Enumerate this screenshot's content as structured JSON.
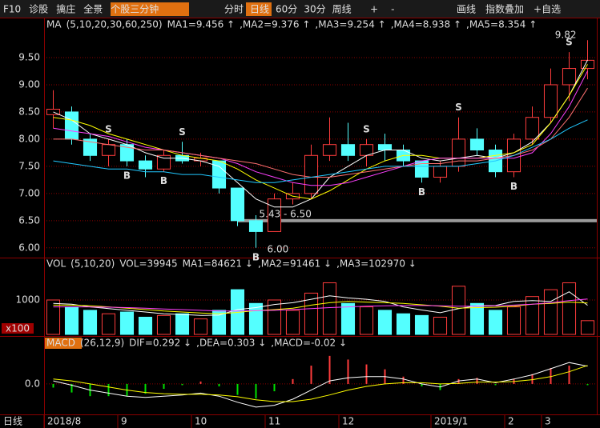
{
  "toolbar": {
    "left": [
      "F10",
      "诊股",
      "擒庄",
      "全景",
      "个股三分钟"
    ],
    "periods": [
      "分时",
      "日线",
      "60分",
      "30分",
      "周线"
    ],
    "zoom": [
      "+",
      "-"
    ],
    "right": [
      "画线",
      "指数叠加",
      "+自选"
    ]
  },
  "footer": {
    "period": "日线"
  },
  "chart_data": [
    {
      "type": "candlestick",
      "indicator": "MA",
      "params": "(5,10,20,30,60,250)",
      "categories": [
        "2018/8",
        null,
        null,
        null,
        "9",
        null,
        null,
        null,
        "10",
        null,
        null,
        null,
        "11",
        null,
        null,
        null,
        "12",
        null,
        null,
        null,
        null,
        "2019/1",
        null,
        null,
        null,
        "2",
        null,
        "3",
        null,
        null
      ],
      "open": [
        8.45,
        8.5,
        8.0,
        7.7,
        7.9,
        7.6,
        7.45,
        7.7,
        7.6,
        7.6,
        7.1,
        6.5,
        6.3,
        6.9,
        7.0,
        7.7,
        7.9,
        7.7,
        7.9,
        7.8,
        7.6,
        7.3,
        7.5,
        8.0,
        7.8,
        7.4,
        8.0,
        8.4,
        9.0,
        9.3
      ],
      "high": [
        8.9,
        8.6,
        8.1,
        8.0,
        8.0,
        7.7,
        7.8,
        7.95,
        7.75,
        7.6,
        7.1,
        6.6,
        7.0,
        7.2,
        7.9,
        8.4,
        8.3,
        8.0,
        8.1,
        7.9,
        7.6,
        7.6,
        8.4,
        8.2,
        7.9,
        8.1,
        8.6,
        9.3,
        9.6,
        9.82
      ],
      "low": [
        8.2,
        7.9,
        7.6,
        7.5,
        7.5,
        7.3,
        7.4,
        7.55,
        7.5,
        7.0,
        6.4,
        6.0,
        6.3,
        6.8,
        6.9,
        7.6,
        7.6,
        7.5,
        7.6,
        7.5,
        7.2,
        7.2,
        7.4,
        7.7,
        7.3,
        7.3,
        7.9,
        8.3,
        8.7,
        9.1
      ],
      "close": [
        8.55,
        8.0,
        7.7,
        7.9,
        7.6,
        7.45,
        7.7,
        7.6,
        7.65,
        7.1,
        6.5,
        6.3,
        6.9,
        7.0,
        7.7,
        7.9,
        7.7,
        7.9,
        7.8,
        7.6,
        7.3,
        7.5,
        8.0,
        7.8,
        7.4,
        8.0,
        8.4,
        9.0,
        9.3,
        9.45
      ],
      "up_color": "#ff3c3c",
      "down_color": "#54ffff",
      "signals": [
        null,
        null,
        null,
        "S",
        "B",
        null,
        "B",
        "S",
        null,
        null,
        null,
        "B",
        null,
        null,
        null,
        null,
        null,
        "S",
        null,
        null,
        "B",
        null,
        "S",
        null,
        null,
        "B",
        null,
        null,
        "S",
        null
      ],
      "signal_colors": {
        "B": "#ff9020",
        "S": "#40ff40"
      },
      "series": [
        {
          "name": "MA1=9.456 ↑",
          "color": "#ffffff",
          "values": [
            8.5,
            8.35,
            8.1,
            8.0,
            7.9,
            7.75,
            7.65,
            7.65,
            7.6,
            7.5,
            7.2,
            6.9,
            6.75,
            6.75,
            6.9,
            7.3,
            7.5,
            7.7,
            7.8,
            7.8,
            7.65,
            7.6,
            7.65,
            7.7,
            7.65,
            7.75,
            7.95,
            8.3,
            8.8,
            9.456
          ]
        },
        {
          "name": ",MA2=9.376 ↑",
          "color": "#ffff00",
          "values": [
            8.4,
            8.35,
            8.25,
            8.1,
            8.0,
            7.9,
            7.8,
            7.7,
            7.65,
            7.6,
            7.45,
            7.25,
            7.1,
            6.95,
            6.9,
            7.05,
            7.25,
            7.45,
            7.6,
            7.7,
            7.7,
            7.65,
            7.65,
            7.65,
            7.7,
            7.75,
            7.9,
            8.3,
            8.8,
            9.376
          ]
        },
        {
          "name": ",MA3=9.254 ↑",
          "color": "#ff40ff",
          "values": [
            8.2,
            8.15,
            8.1,
            8.05,
            7.95,
            7.85,
            7.8,
            7.75,
            7.7,
            7.65,
            7.55,
            7.4,
            7.3,
            7.2,
            7.15,
            7.15,
            7.2,
            7.3,
            7.4,
            7.5,
            7.6,
            7.65,
            7.65,
            7.65,
            7.65,
            7.65,
            7.75,
            8.1,
            8.6,
            9.254
          ]
        },
        {
          "name": ",MA4=8.938 ↑",
          "color": "#ff7070",
          "values": [
            8.0,
            8.0,
            7.95,
            7.9,
            7.85,
            7.8,
            7.8,
            7.75,
            7.7,
            7.65,
            7.6,
            7.55,
            7.45,
            7.35,
            7.3,
            7.3,
            7.35,
            7.4,
            7.45,
            7.5,
            7.55,
            7.55,
            7.6,
            7.6,
            7.65,
            7.7,
            7.8,
            8.0,
            8.4,
            8.938
          ]
        },
        {
          "name": ",MA5=8.354 ↑",
          "color": "#20c8ff",
          "values": [
            7.6,
            7.55,
            7.5,
            7.45,
            7.45,
            7.4,
            7.4,
            7.35,
            7.35,
            7.3,
            7.25,
            7.2,
            7.2,
            7.25,
            7.3,
            7.35,
            7.4,
            7.45,
            7.5,
            7.5,
            7.5,
            7.5,
            7.5,
            7.55,
            7.6,
            7.7,
            7.85,
            8.0,
            8.2,
            8.354
          ]
        }
      ],
      "high_label": "9.82",
      "low_label": "6.00",
      "range_label": "5.43 - 6.50",
      "level_line": 6.5,
      "ylim": [
        5.85,
        10.0
      ],
      "yticks": [
        {
          "value": 6,
          "label": "6.00"
        },
        {
          "value": 6.5,
          "label": "6.50"
        },
        {
          "value": 7,
          "label": "7.00"
        },
        {
          "value": 7.5,
          "label": "7.50"
        },
        {
          "value": 8,
          "label": "8.00"
        },
        {
          "value": 8.5,
          "label": "8.50"
        },
        {
          "value": 9,
          "label": "9.00"
        },
        {
          "value": 9.5,
          "label": "9.50"
        }
      ],
      "tick_color": "#ff4040"
    },
    {
      "type": "bar",
      "indicator": "VOL",
      "params": "(5,10,20)",
      "value_label": "VOL=39945",
      "unit": "x100",
      "values": [
        1000,
        800,
        700,
        600,
        650,
        500,
        550,
        600,
        450,
        700,
        1300,
        900,
        1000,
        700,
        1200,
        1500,
        900,
        800,
        700,
        600,
        550,
        500,
        1400,
        900,
        700,
        800,
        1100,
        1300,
        1500,
        399.45
      ],
      "series": [
        {
          "name": "MA1=84621 ↓",
          "color": "#ffffff",
          "values": [
            900,
            880,
            800,
            750,
            700,
            650,
            600,
            580,
            550,
            560,
            720,
            780,
            870,
            920,
            1020,
            1120,
            1060,
            1020,
            960,
            800,
            710,
            630,
            750,
            830,
            840,
            960,
            980,
            960,
            1240,
            846.21
          ]
        },
        {
          "name": ",MA2=91461 ↓",
          "color": "#ffff00",
          "values": [
            850,
            850,
            830,
            800,
            760,
            720,
            680,
            650,
            620,
            600,
            640,
            690,
            720,
            760,
            850,
            920,
            960,
            940,
            920,
            900,
            860,
            820,
            760,
            780,
            790,
            820,
            880,
            900,
            940,
            914.61
          ]
        },
        {
          "name": ",MA3=102970 ↓",
          "color": "#ff40ff",
          "values": [
            800,
            800,
            800,
            790,
            780,
            760,
            740,
            720,
            700,
            680,
            680,
            690,
            700,
            720,
            750,
            780,
            800,
            820,
            830,
            840,
            840,
            830,
            820,
            820,
            830,
            850,
            880,
            920,
            980,
            1029.7
          ]
        }
      ],
      "ylim": [
        0,
        1860
      ],
      "yticks": [
        1000
      ],
      "tick_color": "#ff4040"
    },
    {
      "type": "macd",
      "indicator": "MACD",
      "params": "(26,12,9)",
      "values": [
        -0.06,
        -0.14,
        -0.2,
        -0.2,
        -0.2,
        -0.16,
        -0.08,
        -0.02,
        0.04,
        -0.04,
        -0.18,
        -0.24,
        -0.12,
        0.08,
        0.3,
        0.46,
        0.4,
        0.32,
        0.24,
        0.12,
        -0.04,
        -0.1,
        0.08,
        0.1,
        -0.02,
        0.08,
        0.16,
        0.26,
        0.3,
        -0.02
      ],
      "up_color": "#ff3c3c",
      "down_color": "#00e000",
      "series": [
        {
          "name": "DIF=0.292 ↓",
          "color": "#ffffff",
          "values": [
            0.05,
            -0.02,
            -0.1,
            -0.15,
            -0.2,
            -0.22,
            -0.2,
            -0.18,
            -0.15,
            -0.2,
            -0.3,
            -0.38,
            -0.35,
            -0.25,
            -0.1,
            0.05,
            0.1,
            0.12,
            0.12,
            0.08,
            0.0,
            -0.05,
            0.05,
            0.08,
            0.02,
            0.08,
            0.15,
            0.25,
            0.35,
            0.292
          ]
        },
        {
          "name": ",DEA=0.303 ↓",
          "color": "#ffff00",
          "values": [
            0.08,
            0.05,
            0.0,
            -0.05,
            -0.1,
            -0.14,
            -0.16,
            -0.17,
            -0.17,
            -0.18,
            -0.21,
            -0.26,
            -0.29,
            -0.29,
            -0.25,
            -0.18,
            -0.1,
            -0.04,
            0.0,
            0.02,
            0.02,
            0.0,
            0.01,
            0.03,
            0.03,
            0.04,
            0.07,
            0.12,
            0.2,
            0.303
          ]
        }
      ],
      "value_label": ",MACD=-0.02 ↓",
      "ylim": [
        -0.46,
        0.55
      ],
      "yticks": [
        {
          "value": 0,
          "label": "0.0"
        }
      ],
      "tick_color": "#ff4040"
    }
  ]
}
